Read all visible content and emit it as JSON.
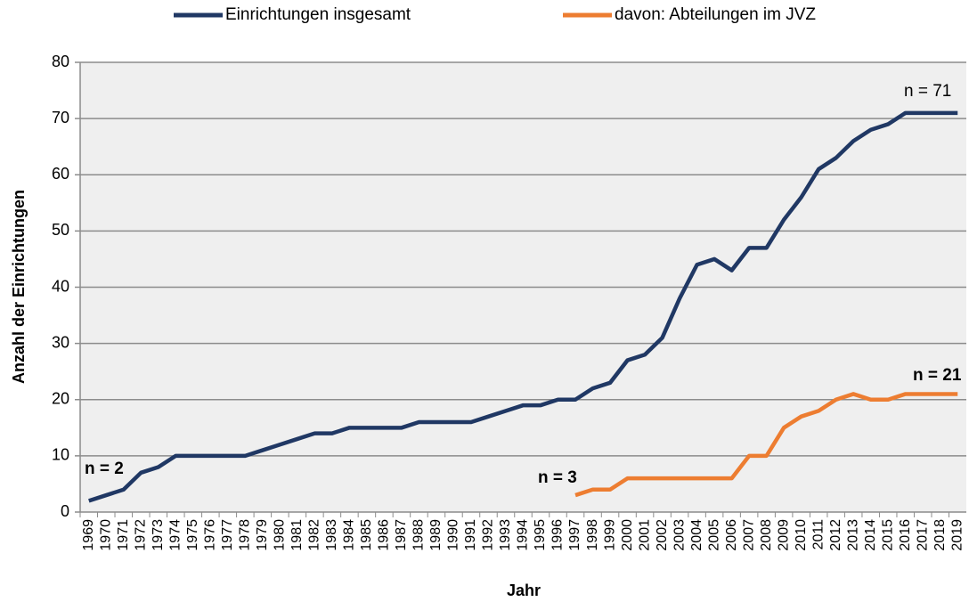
{
  "chart_data": {
    "type": "line",
    "x_label": "Jahr",
    "y_label": "Anzahl der Einrichtungen",
    "categories": [
      "1969",
      "1970",
      "1971",
      "1972",
      "1973",
      "1974",
      "1975",
      "1976",
      "1977",
      "1978",
      "1979",
      "1980",
      "1981",
      "1982",
      "1983",
      "1984",
      "1985",
      "1986",
      "1987",
      "1988",
      "1989",
      "1990",
      "1991",
      "1992",
      "1993",
      "1994",
      "1995",
      "1996",
      "1997",
      "1998",
      "1999",
      "2000",
      "2001",
      "2002",
      "2003",
      "2004",
      "2005",
      "2006",
      "2007",
      "2008",
      "2009",
      "2010",
      "2011",
      "2012",
      "2013",
      "2014",
      "2015",
      "2016",
      "2017",
      "2018",
      "2019"
    ],
    "series": [
      {
        "name": "Einrichtungen insgesamt",
        "color": "#203864",
        "values": [
          2,
          3,
          4,
          7,
          8,
          10,
          10,
          10,
          10,
          10,
          11,
          12,
          13,
          14,
          14,
          15,
          15,
          15,
          15,
          16,
          16,
          16,
          16,
          17,
          18,
          19,
          19,
          20,
          20,
          22,
          23,
          27,
          28,
          31,
          38,
          44,
          45,
          43,
          47,
          47,
          52,
          56,
          61,
          63,
          66,
          68,
          69,
          71,
          71,
          71,
          71
        ]
      },
      {
        "name": "davon: Abteilungen im JVZ",
        "color": "#ed7d31",
        "values": [
          null,
          null,
          null,
          null,
          null,
          null,
          null,
          null,
          null,
          null,
          null,
          null,
          null,
          null,
          null,
          null,
          null,
          null,
          null,
          null,
          null,
          null,
          null,
          null,
          null,
          null,
          null,
          null,
          3,
          4,
          4,
          6,
          6,
          6,
          6,
          6,
          6,
          6,
          10,
          10,
          15,
          17,
          18,
          20,
          21,
          20,
          20,
          21,
          21,
          21,
          21
        ]
      }
    ],
    "annotations": [
      "n = 2",
      "n = 3",
      "n = 71",
      "n = 21"
    ],
    "ylim": [
      0,
      80
    ],
    "yticks": [
      0,
      10,
      20,
      30,
      40,
      50,
      60,
      70,
      80
    ],
    "grid": true,
    "legend": "top"
  }
}
